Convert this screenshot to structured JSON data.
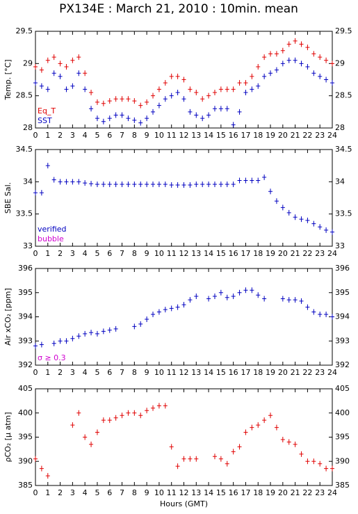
{
  "chart_data": [
    {
      "type": "scatter",
      "title": "PX134E : March 21, 2010 : 10min. mean",
      "ylabel": "Temp. [°C]",
      "x": [
        0,
        0.5,
        1,
        1.5,
        2,
        2.5,
        3,
        3.5,
        4,
        4.5,
        5,
        5.5,
        6,
        6.5,
        7,
        7.5,
        8,
        8.5,
        9,
        9.5,
        10,
        10.5,
        11,
        11.5,
        12,
        12.5,
        13,
        13.5,
        14,
        14.5,
        15,
        15.5,
        16,
        16.5,
        17,
        17.5,
        18,
        18.5,
        19,
        19.5,
        20,
        20.5,
        21,
        21.5,
        22,
        22.5,
        23,
        23.5,
        24
      ],
      "series": [
        {
          "name": "Eq_T",
          "color": "#e00000",
          "values": [
            28.95,
            28.9,
            29.05,
            29.1,
            29.0,
            28.95,
            29.05,
            29.1,
            28.85,
            28.55,
            28.4,
            28.38,
            28.42,
            28.45,
            28.45,
            28.45,
            28.42,
            28.35,
            28.4,
            28.5,
            28.6,
            28.7,
            28.8,
            28.8,
            28.75,
            28.6,
            28.55,
            28.45,
            28.5,
            28.55,
            28.6,
            28.6,
            28.6,
            28.7,
            28.7,
            28.8,
            28.95,
            29.1,
            29.15,
            29.15,
            29.2,
            29.3,
            29.35,
            29.3,
            29.25,
            29.15,
            29.1,
            29.05,
            29.0
          ]
        },
        {
          "name": "SST",
          "color": "#0000c0",
          "values": [
            28.7,
            28.65,
            28.6,
            28.85,
            28.8,
            28.6,
            28.65,
            28.85,
            28.6,
            28.3,
            28.15,
            28.1,
            28.15,
            28.2,
            28.2,
            28.15,
            28.12,
            28.08,
            28.15,
            28.25,
            28.35,
            28.45,
            28.5,
            28.55,
            28.45,
            28.25,
            28.2,
            28.15,
            28.2,
            28.3,
            28.3,
            28.3,
            28.05,
            28.25,
            28.55,
            28.6,
            28.65,
            28.8,
            28.85,
            28.9,
            29.0,
            29.05,
            29.05,
            29.0,
            28.95,
            28.85,
            28.8,
            28.75,
            28.7
          ]
        }
      ],
      "xlim": [
        0,
        24
      ],
      "xticks": [
        0,
        1,
        2,
        3,
        4,
        5,
        6,
        7,
        8,
        9,
        10,
        11,
        12,
        13,
        14,
        15,
        16,
        17,
        18,
        19,
        20,
        21,
        22,
        23,
        24
      ],
      "ylim": [
        28,
        29.5
      ],
      "yticks": [
        28,
        {
          "value": 28.5,
          "label": "28.5"
        },
        29,
        {
          "value": 29.5,
          "label": "29.5"
        }
      ]
    },
    {
      "type": "scatter",
      "ylabel": "SBE Sal.",
      "x": [
        0,
        0.5,
        1,
        1.5,
        2,
        2.5,
        3,
        3.5,
        4,
        4.5,
        5,
        5.5,
        6,
        6.5,
        7,
        7.5,
        8,
        8.5,
        9,
        9.5,
        10,
        10.5,
        11,
        11.5,
        12,
        12.5,
        13,
        13.5,
        14,
        14.5,
        15,
        15.5,
        16,
        16.5,
        17,
        17.5,
        18,
        18.5,
        19,
        19.5,
        20,
        20.5,
        21,
        21.5,
        22,
        22.5,
        23,
        23.5,
        24
      ],
      "series": [
        {
          "color": "#0000c0",
          "values": [
            33.83,
            33.83,
            34.25,
            34.03,
            34.0,
            34.0,
            34.0,
            34.0,
            33.98,
            33.97,
            33.96,
            33.96,
            33.96,
            33.96,
            33.96,
            33.96,
            33.96,
            33.96,
            33.96,
            33.96,
            33.96,
            33.96,
            33.95,
            33.95,
            33.95,
            33.95,
            33.96,
            33.96,
            33.96,
            33.96,
            33.96,
            33.96,
            33.96,
            34.02,
            34.02,
            34.02,
            34.02,
            34.07,
            33.85,
            33.7,
            33.6,
            33.52,
            33.45,
            33.42,
            33.4,
            33.35,
            33.3,
            33.25,
            33.22
          ]
        }
      ],
      "annotations": [
        {
          "text": "verified",
          "color": "#0000c0"
        },
        {
          "text": "bubble",
          "color": "#d000d0"
        }
      ],
      "xlim": [
        0,
        24
      ],
      "xticks": [
        0,
        1,
        2,
        3,
        4,
        5,
        6,
        7,
        8,
        9,
        10,
        11,
        12,
        13,
        14,
        15,
        16,
        17,
        18,
        19,
        20,
        21,
        22,
        23,
        24
      ],
      "ylim": [
        33,
        34.5
      ],
      "yticks": [
        33,
        {
          "value": 33.5,
          "label": "33.5"
        },
        34,
        {
          "value": 34.5,
          "label": "34.5"
        }
      ]
    },
    {
      "type": "scatter",
      "ylabel": "Air xCO₂ [ppm]",
      "x": [
        0,
        0.5,
        1,
        1.5,
        2,
        2.5,
        3,
        3.5,
        4,
        4.5,
        5,
        5.5,
        6,
        6.5,
        7,
        7.5,
        8,
        8.5,
        9,
        9.5,
        10,
        10.5,
        11,
        11.5,
        12,
        12.5,
        13,
        13.5,
        14,
        14.5,
        15,
        15.5,
        16,
        16.5,
        17,
        17.5,
        18,
        18.5,
        19,
        19.5,
        20,
        20.5,
        21,
        21.5,
        22,
        22.5,
        23,
        23.5,
        24
      ],
      "series": [
        {
          "color": "#0000c0",
          "values": [
            392.8,
            392.85,
            null,
            392.9,
            393.0,
            393.0,
            393.1,
            393.2,
            393.3,
            393.35,
            393.3,
            393.4,
            393.45,
            393.5,
            null,
            null,
            393.6,
            393.7,
            393.9,
            394.1,
            394.2,
            394.3,
            394.35,
            394.4,
            394.5,
            394.7,
            394.85,
            null,
            394.75,
            394.85,
            395.0,
            394.8,
            394.85,
            395.0,
            395.1,
            395.1,
            394.9,
            394.75,
            null,
            null,
            394.75,
            394.7,
            394.7,
            394.65,
            394.4,
            394.2,
            394.1,
            394.1,
            394.0
          ]
        }
      ],
      "annotations": [
        {
          "text": "σ ≥ 0.3",
          "color": "#d000d0"
        }
      ],
      "xlim": [
        0,
        24
      ],
      "xticks": [
        0,
        1,
        2,
        3,
        4,
        5,
        6,
        7,
        8,
        9,
        10,
        11,
        12,
        13,
        14,
        15,
        16,
        17,
        18,
        19,
        20,
        21,
        22,
        23,
        24
      ],
      "ylim": [
        392,
        396
      ],
      "yticks": [
        392,
        393,
        394,
        395,
        396
      ]
    },
    {
      "type": "scatter",
      "ylabel": "ρCO₂ [μ atm]",
      "xlabel": "Hours (GMT)",
      "x": [
        0,
        0.5,
        1,
        1.5,
        2,
        2.5,
        3,
        3.5,
        4,
        4.5,
        5,
        5.5,
        6,
        6.5,
        7,
        7.5,
        8,
        8.5,
        9,
        9.5,
        10,
        10.5,
        11,
        11.5,
        12,
        12.5,
        13,
        13.5,
        14,
        14.5,
        15,
        15.5,
        16,
        16.5,
        17,
        17.5,
        18,
        18.5,
        19,
        19.5,
        20,
        20.5,
        21,
        21.5,
        22,
        22.5,
        23,
        23.5,
        24
      ],
      "series": [
        {
          "color": "#e00000",
          "values": [
            390.5,
            388.5,
            387,
            null,
            null,
            null,
            397.5,
            400,
            395,
            393.5,
            396,
            398.5,
            398.5,
            399,
            399.5,
            400,
            400,
            399.5,
            400.5,
            401,
            401.5,
            401.5,
            393,
            389,
            390.5,
            390.5,
            390.5,
            null,
            null,
            391,
            390.5,
            389.5,
            392,
            393,
            396,
            397,
            397.5,
            398.5,
            399.5,
            397,
            394.5,
            394,
            393.5,
            391.5,
            390,
            390,
            389.5,
            388.5,
            388.5
          ]
        }
      ],
      "xlim": [
        0,
        24
      ],
      "xticks": [
        0,
        1,
        2,
        3,
        4,
        5,
        6,
        7,
        8,
        9,
        10,
        11,
        12,
        13,
        14,
        15,
        16,
        17,
        18,
        19,
        20,
        21,
        22,
        23,
        24
      ],
      "ylim": [
        385,
        405
      ],
      "yticks": [
        385,
        390,
        395,
        400,
        405
      ]
    }
  ]
}
